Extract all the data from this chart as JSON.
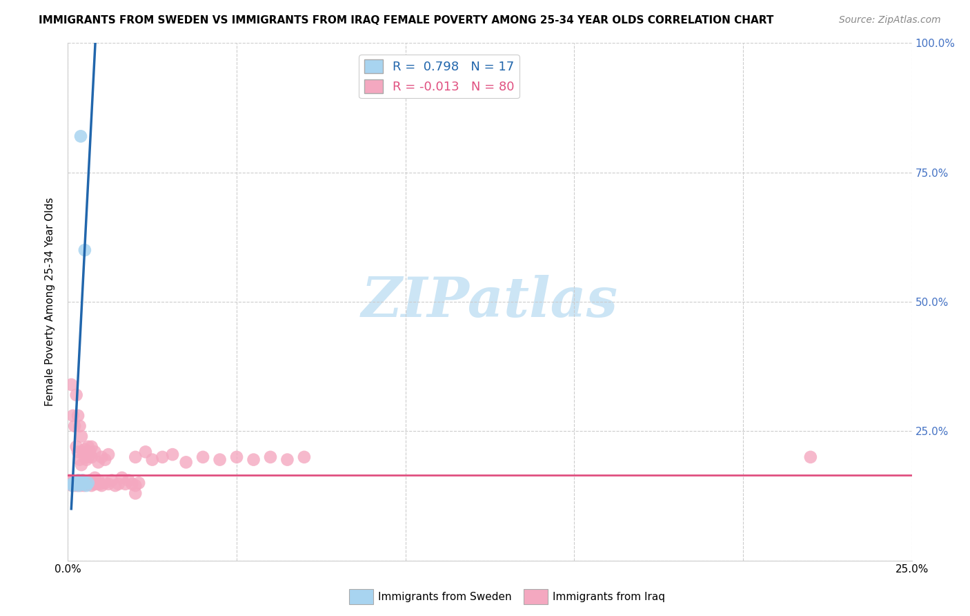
{
  "title": "IMMIGRANTS FROM SWEDEN VS IMMIGRANTS FROM IRAQ FEMALE POVERTY AMONG 25-34 YEAR OLDS CORRELATION CHART",
  "source": "Source: ZipAtlas.com",
  "ylabel": "Female Poverty Among 25-34 Year Olds",
  "legend_sweden_R": 0.798,
  "legend_sweden_N": 17,
  "legend_iraq_R": -0.013,
  "legend_iraq_N": 80,
  "sweden_color": "#a8d4f0",
  "iraq_color": "#f4a8c0",
  "sweden_line_color": "#2166ac",
  "iraq_line_color": "#e05080",
  "xlim": [
    0.0,
    0.25
  ],
  "ylim": [
    0.0,
    1.0
  ],
  "xticks": [
    0.0,
    0.05,
    0.1,
    0.15,
    0.2,
    0.25
  ],
  "yticks": [
    0.0,
    0.25,
    0.5,
    0.75,
    1.0
  ],
  "right_yticks": [
    0.25,
    0.5,
    0.75,
    1.0
  ],
  "sweden_x": [
    0.0012,
    0.0014,
    0.0018,
    0.0022,
    0.0025,
    0.0028,
    0.003,
    0.0032,
    0.0035,
    0.0038,
    0.004,
    0.0042,
    0.0045,
    0.0048,
    0.005,
    0.0055,
    0.006
  ],
  "sweden_y": [
    0.148,
    0.145,
    0.15,
    0.148,
    0.152,
    0.148,
    0.155,
    0.145,
    0.15,
    0.82,
    0.148,
    0.155,
    0.15,
    0.148,
    0.6,
    0.145,
    0.15
  ],
  "iraq_x": [
    0.0005,
    0.0008,
    0.001,
    0.0012,
    0.0015,
    0.0018,
    0.002,
    0.0022,
    0.0025,
    0.0028,
    0.003,
    0.0032,
    0.0035,
    0.0038,
    0.004,
    0.0042,
    0.0045,
    0.0048,
    0.005,
    0.0055,
    0.006,
    0.0065,
    0.007,
    0.0075,
    0.008,
    0.0085,
    0.009,
    0.0095,
    0.01,
    0.011,
    0.012,
    0.013,
    0.014,
    0.015,
    0.016,
    0.017,
    0.018,
    0.019,
    0.02,
    0.021,
    0.001,
    0.0015,
    0.002,
    0.0025,
    0.003,
    0.0035,
    0.004,
    0.005,
    0.006,
    0.007,
    0.008,
    0.009,
    0.01,
    0.011,
    0.012,
    0.0025,
    0.003,
    0.0035,
    0.004,
    0.0045,
    0.005,
    0.0055,
    0.006,
    0.0065,
    0.007,
    0.02,
    0.023,
    0.025,
    0.028,
    0.031,
    0.035,
    0.04,
    0.045,
    0.05,
    0.055,
    0.06,
    0.065,
    0.07,
    0.02,
    0.22
  ],
  "iraq_y": [
    0.155,
    0.15,
    0.148,
    0.145,
    0.152,
    0.148,
    0.145,
    0.15,
    0.148,
    0.145,
    0.148,
    0.155,
    0.148,
    0.145,
    0.15,
    0.148,
    0.155,
    0.145,
    0.148,
    0.15,
    0.148,
    0.155,
    0.145,
    0.148,
    0.16,
    0.148,
    0.155,
    0.148,
    0.145,
    0.15,
    0.148,
    0.155,
    0.145,
    0.148,
    0.16,
    0.148,
    0.155,
    0.148,
    0.145,
    0.15,
    0.34,
    0.28,
    0.26,
    0.22,
    0.21,
    0.195,
    0.185,
    0.2,
    0.22,
    0.2,
    0.21,
    0.19,
    0.2,
    0.195,
    0.205,
    0.32,
    0.28,
    0.26,
    0.24,
    0.21,
    0.215,
    0.195,
    0.2,
    0.21,
    0.22,
    0.2,
    0.21,
    0.195,
    0.2,
    0.205,
    0.19,
    0.2,
    0.195,
    0.2,
    0.195,
    0.2,
    0.195,
    0.2,
    0.13,
    0.2
  ],
  "watermark_text": "ZIPatlas",
  "watermark_color": "#cce5f5",
  "legend_label_sweden": "Immigrants from Sweden",
  "legend_label_iraq": "Immigrants from Iraq"
}
